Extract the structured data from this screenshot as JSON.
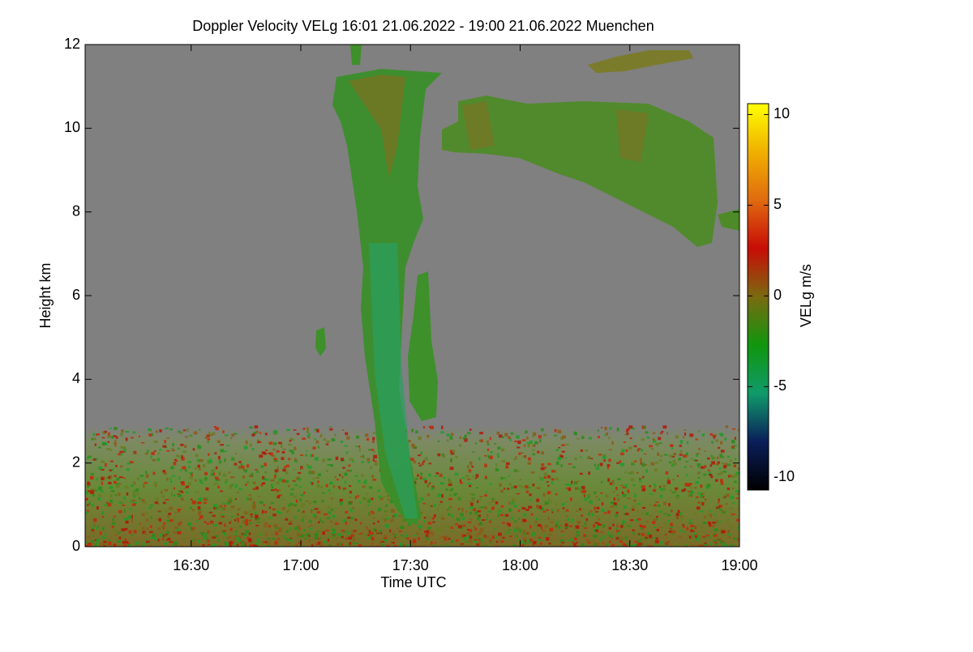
{
  "chart_data": {
    "type": "heatmap",
    "title": "Doppler Velocity VELg   16:01 21.06.2022 - 19:00 21.06.2022 Muenchen",
    "x_label": "Time UTC",
    "y_label": "Height km",
    "xlim": [
      16.0167,
      19.0
    ],
    "xticks": [
      {
        "value": 16.5,
        "label": "16:30"
      },
      {
        "value": 17.0,
        "label": "17:00"
      },
      {
        "value": 17.5,
        "label": "17:30"
      },
      {
        "value": 18.0,
        "label": "18:00"
      },
      {
        "value": 18.5,
        "label": "18:30"
      },
      {
        "value": 19.0,
        "label": "19:00"
      }
    ],
    "ylim": [
      0,
      12
    ],
    "yticks": [
      0,
      2,
      4,
      6,
      8,
      10,
      12
    ],
    "background": "#808080",
    "colorbar": {
      "label": "VELg m/s",
      "lim": [
        -10.7,
        10.6
      ],
      "ticks": [
        -10,
        -5,
        0,
        5,
        10
      ],
      "colormap": [
        "#000000",
        "#0a1e5a",
        "#109a6a",
        "#10960e",
        "#7a6a10",
        "#c80c06",
        "#e06a10",
        "#f0b000",
        "#ffff00"
      ]
    }
  }
}
